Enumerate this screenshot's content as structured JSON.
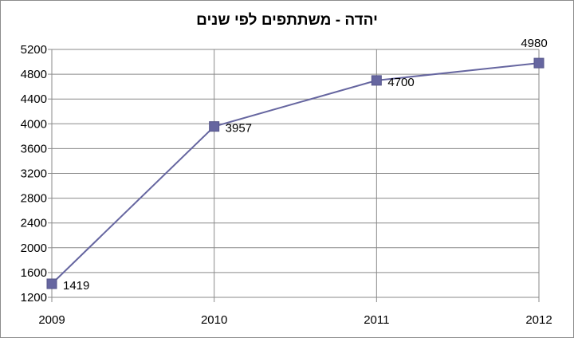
{
  "chart_data": {
    "type": "line",
    "title": "יהדה - משתתפים לפי שנים",
    "xlabel": "",
    "ylabel": "",
    "categories": [
      "2009",
      "2010",
      "2011",
      "2012"
    ],
    "series": [
      {
        "values": [
          1419,
          3957,
          4700,
          4980
        ],
        "color": "#6666a0"
      }
    ],
    "data_labels": [
      "1419",
      "3957",
      "4700",
      "4980"
    ],
    "ylim": [
      1200,
      5200
    ],
    "ytick_step": 400,
    "grid": {
      "horizontal": true,
      "vertical": true
    },
    "legend": "none",
    "marker": "square"
  }
}
